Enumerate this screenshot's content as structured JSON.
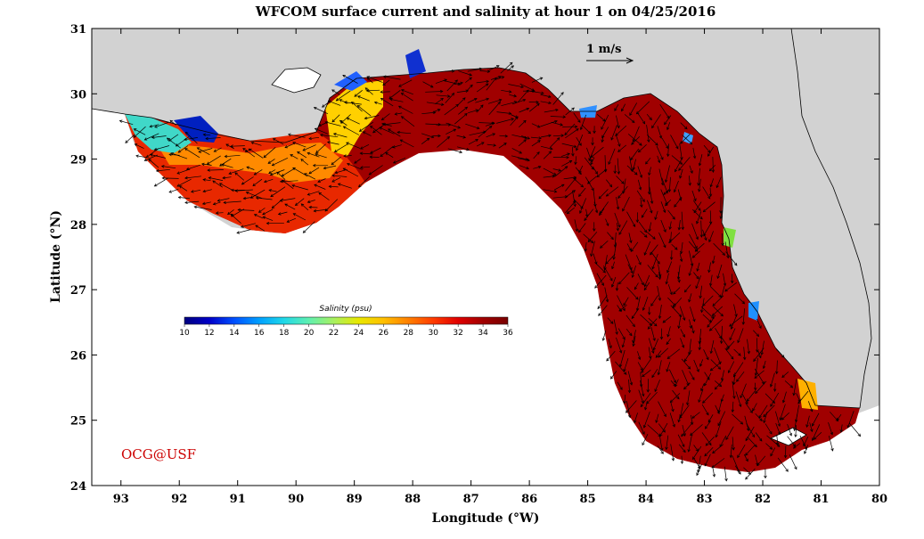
{
  "title": "WFCOM surface current and salinity at hour 1 on 04/25/2016",
  "xlabel": "Longitude (°W)",
  "ylabel": "Latitude (°N)",
  "x_ticks": [
    "93",
    "92",
    "91",
    "90",
    "89",
    "88",
    "87",
    "86",
    "85",
    "84",
    "83",
    "82",
    "81",
    "80"
  ],
  "y_ticks": [
    "31",
    "30",
    "29",
    "28",
    "27",
    "26",
    "25",
    "24"
  ],
  "lon_range": [
    -93.5,
    -80
  ],
  "lat_range": [
    24,
    31
  ],
  "colorbar": {
    "title": "Salinity (psu)",
    "ticks": [
      "10",
      "12",
      "14",
      "16",
      "18",
      "20",
      "22",
      "24",
      "26",
      "28",
      "30",
      "32",
      "34",
      "36"
    ],
    "min": 10,
    "max": 36,
    "colors": [
      "#00007f",
      "#0000c8",
      "#0050ff",
      "#00a0ff",
      "#20d8e8",
      "#60f0b0",
      "#a8f060",
      "#e8e800",
      "#ffc000",
      "#ff8000",
      "#ff3c00",
      "#e00000",
      "#a00000",
      "#780000"
    ]
  },
  "scale_arrow": {
    "label": "1 m/s",
    "speed_m_s": 1
  },
  "credit": "OCG@USF",
  "colors": {
    "land": "#d2d2d2",
    "frame": "#000000",
    "credit": "#cc0000",
    "ocean_high_salinity": "#a00000"
  }
}
